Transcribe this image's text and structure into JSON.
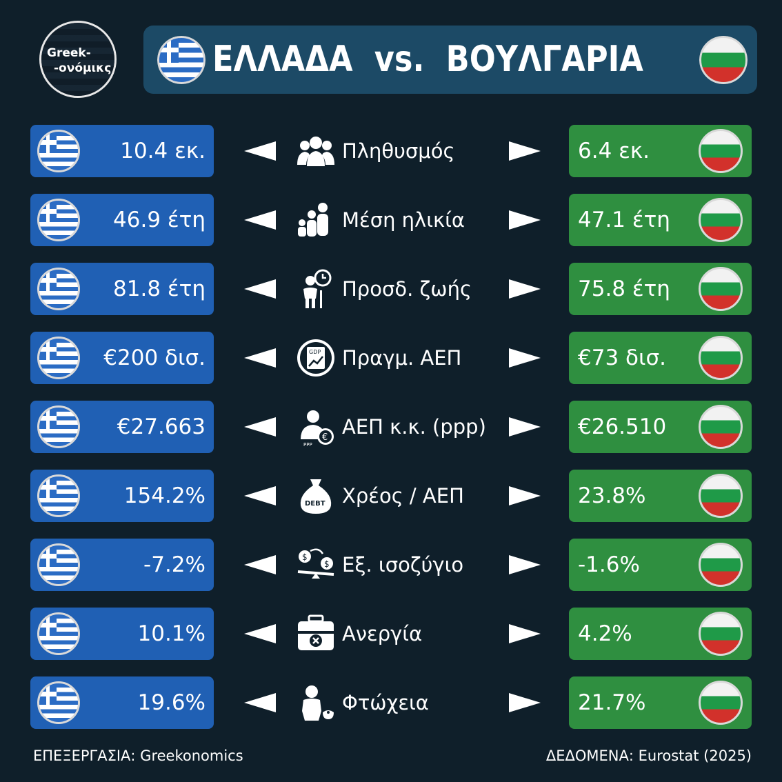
{
  "logo": {
    "line1": "Greek-",
    "line2": "-ονόμικς"
  },
  "header": {
    "title": "ΕΛΛΑΔΑ  vs.  ΒΟΥΛΓΑΡΙΑ"
  },
  "colors": {
    "background": "#0f1f2a",
    "header": "#1c4a66",
    "greece_box": "#2060b4",
    "bulgaria_box": "#2f8f40"
  },
  "rows": [
    {
      "label": "Πληθυσμός",
      "icon": "people-group-icon",
      "greece": "10.4 εκ.",
      "bulgaria": "6.4 εκ."
    },
    {
      "label": "Μέση ηλικία",
      "icon": "family-ages-icon",
      "greece": "46.9 έτη",
      "bulgaria": "47.1 έτη"
    },
    {
      "label": "Προσδ. ζωής",
      "icon": "elderly-clock-icon",
      "greece": "81.8 έτη",
      "bulgaria": "75.8 έτη"
    },
    {
      "label": "Πραγμ. ΑΕΠ",
      "icon": "gdp-chart-icon",
      "greece": "€200 δισ.",
      "bulgaria": "€73 δισ."
    },
    {
      "label": "ΑΕΠ κ.κ. (ppp)",
      "icon": "person-euro-icon",
      "greece": "€27.663",
      "bulgaria": "€26.510"
    },
    {
      "label": "Χρέος / ΑΕΠ",
      "icon": "debt-bag-icon",
      "greece": "154.2%",
      "bulgaria": "23.8%"
    },
    {
      "label": "Εξ. ισοζύγιο",
      "icon": "dollar-balance-icon",
      "greece": "-7.2%",
      "bulgaria": "-1.6%"
    },
    {
      "label": "Ανεργία",
      "icon": "briefcase-x-icon",
      "greece": "10.1%",
      "bulgaria": "4.2%"
    },
    {
      "label": "Φτώχεια",
      "icon": "poor-person-icon",
      "greece": "19.6%",
      "bulgaria": "21.7%"
    }
  ],
  "footer": {
    "left": "ΕΠΕΞΕΡΓΑΣΙΑ: Greekonomics",
    "right": "ΔΕΔΟΜΕΝΑ: Eurostat (2025)"
  }
}
